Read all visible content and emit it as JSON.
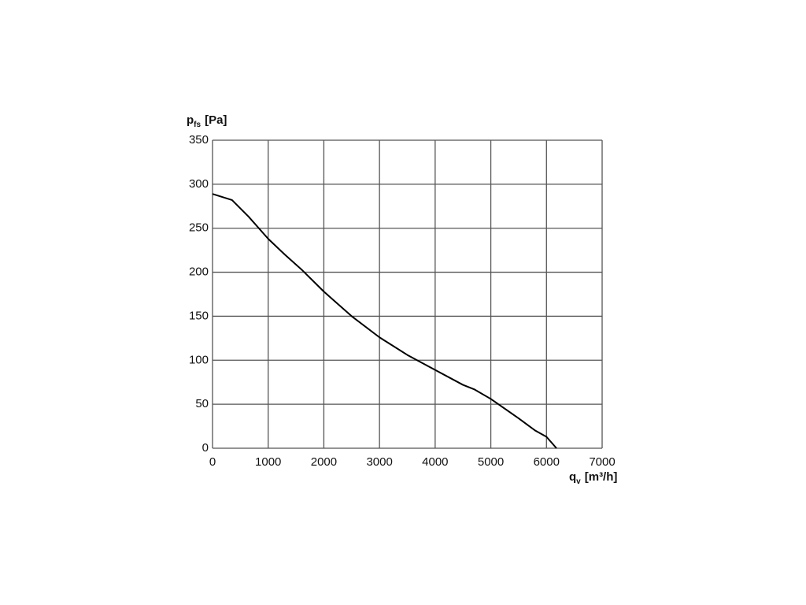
{
  "chart_data": {
    "type": "line",
    "ylabel": {
      "main": "p",
      "sub": "fs",
      "unit": "[Pa]"
    },
    "xlabel": {
      "main": "q",
      "sub": "v",
      "unit": "[m³/h]"
    },
    "xlim": [
      0,
      7000
    ],
    "xticks": [
      0,
      1000,
      2000,
      3000,
      4000,
      5000,
      6000,
      7000
    ],
    "ylim": [
      0,
      350
    ],
    "yticks": [
      0,
      50,
      100,
      150,
      200,
      250,
      300,
      350
    ],
    "grid": true,
    "x": [
      0,
      350,
      650,
      1000,
      1300,
      1600,
      2000,
      2500,
      3000,
      3500,
      4000,
      4500,
      4700,
      5000,
      5500,
      5800,
      6000,
      6180
    ],
    "series": [
      {
        "color": "#000000",
        "values": [
          289,
          282,
          263,
          238,
          220,
          203,
          178,
          150,
          126,
          106,
          89,
          72,
          67,
          56,
          34,
          20,
          13,
          0
        ]
      }
    ]
  }
}
